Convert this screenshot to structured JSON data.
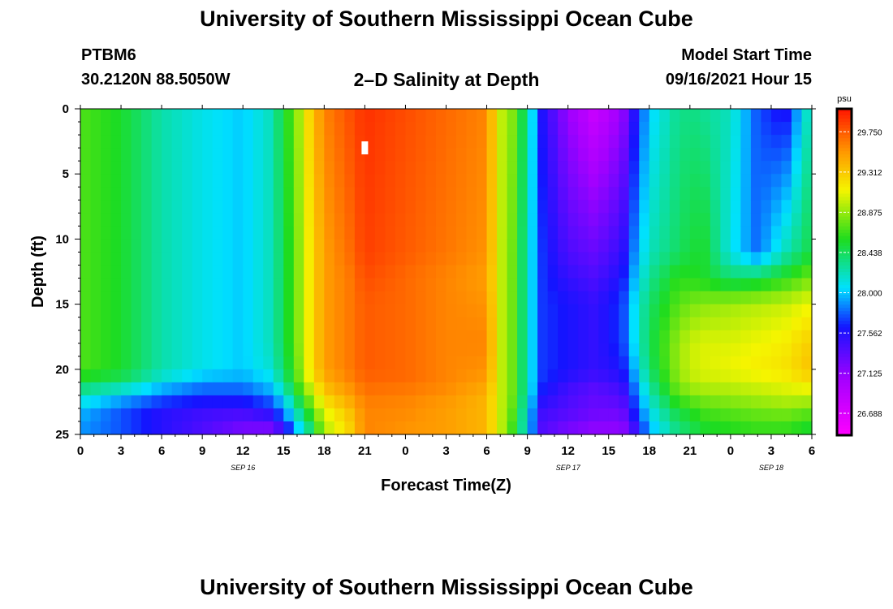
{
  "page": {
    "title_top": "University of Southern Mississippi Ocean Cube",
    "title_bottom": "University of Southern Mississippi Ocean Cube",
    "station_id": "PTBM6",
    "station_coords": "30.2120N  88.5050W",
    "plot_title": "2–D Salinity at Depth",
    "model_start_label": "Model Start Time",
    "model_start_value": "09/16/2021 Hour 15"
  },
  "chart_data": {
    "type": "heatmap",
    "title": "2–D Salinity at Depth",
    "xlabel": "Forecast Time(Z)",
    "ylabel": "Depth (ft)",
    "x_hours": [
      0,
      3,
      6,
      9,
      12,
      15,
      18,
      21,
      24,
      27,
      30,
      33,
      36,
      39,
      42,
      45,
      48,
      51,
      54
    ],
    "x_tick_labels": [
      "0",
      "3",
      "6",
      "9",
      "12",
      "15",
      "18",
      "21",
      "0",
      "3",
      "6",
      "9",
      "12",
      "15",
      "18",
      "21",
      "0",
      "3",
      "6"
    ],
    "xlim": [
      0,
      54
    ],
    "date_labels": [
      {
        "hour": 12,
        "text": "SEP 16"
      },
      {
        "hour": 36,
        "text": "SEP 17"
      },
      {
        "hour": 51,
        "text": "SEP 18"
      }
    ],
    "y_ticks": [
      0,
      5,
      10,
      15,
      20,
      25
    ],
    "ylim": [
      0,
      25
    ],
    "colorbar": {
      "unit": "psu",
      "min": 26.45,
      "max": 30.0,
      "tick_values": [
        29.75,
        29.312,
        28.875,
        28.438,
        28.0,
        27.562,
        27.125,
        26.688
      ],
      "tick_labels": [
        "29.750",
        "29.312",
        "28.875",
        "28.438",
        "28.000",
        "27.562",
        "27.125",
        "26.688"
      ]
    },
    "depths_ft": [
      0,
      11,
      13,
      15,
      18,
      20,
      21,
      22,
      23,
      24,
      25
    ],
    "salinity_hours": [
      0,
      3,
      6,
      9,
      12,
      14,
      15,
      16,
      17,
      18,
      20,
      21,
      24,
      27,
      30,
      31,
      32,
      33,
      34,
      36,
      38,
      40,
      41,
      42,
      44,
      45,
      46,
      48,
      50,
      52,
      54
    ],
    "salinity_psu": [
      [
        28.7,
        28.55,
        28.25,
        28.1,
        28.0,
        28.2,
        28.5,
        28.85,
        29.3,
        29.6,
        29.8,
        29.9,
        29.8,
        29.7,
        29.6,
        29.0,
        28.8,
        28.3,
        27.6,
        27.1,
        26.8,
        27.1,
        27.6,
        28.0,
        28.3,
        28.35,
        28.3,
        28.2,
        27.75,
        27.55,
        28.3
      ],
      [
        28.7,
        28.55,
        28.25,
        28.1,
        28.0,
        28.2,
        28.45,
        28.8,
        29.2,
        29.5,
        29.7,
        29.85,
        29.75,
        29.65,
        29.55,
        29.0,
        28.75,
        28.2,
        27.7,
        27.4,
        27.3,
        27.5,
        27.9,
        28.2,
        28.4,
        28.5,
        28.55,
        28.1,
        27.8,
        28.2,
        28.5
      ],
      [
        28.7,
        28.55,
        28.25,
        28.1,
        28.0,
        28.2,
        28.45,
        28.8,
        29.2,
        29.5,
        29.65,
        29.8,
        29.7,
        29.6,
        29.5,
        29.0,
        28.75,
        28.2,
        27.7,
        27.5,
        27.4,
        27.6,
        28.0,
        28.3,
        28.6,
        28.6,
        28.55,
        28.4,
        28.45,
        28.6,
        28.8
      ],
      [
        28.7,
        28.55,
        28.25,
        28.1,
        28.0,
        28.2,
        28.45,
        28.8,
        29.2,
        29.5,
        29.65,
        29.75,
        29.7,
        29.6,
        29.55,
        29.0,
        28.75,
        28.2,
        27.7,
        27.6,
        27.5,
        27.7,
        28.1,
        28.4,
        28.7,
        28.8,
        28.85,
        28.9,
        28.95,
        29.0,
        29.1
      ],
      [
        28.7,
        28.55,
        28.25,
        28.1,
        28.0,
        28.2,
        28.45,
        28.8,
        29.2,
        29.5,
        29.65,
        29.75,
        29.7,
        29.6,
        29.6,
        29.0,
        28.75,
        28.2,
        27.7,
        27.6,
        27.5,
        27.7,
        28.1,
        28.45,
        28.85,
        29.0,
        29.05,
        29.05,
        29.1,
        29.15,
        29.3
      ],
      [
        28.7,
        28.55,
        28.25,
        28.1,
        28.0,
        28.15,
        28.4,
        28.75,
        29.2,
        29.5,
        29.65,
        29.75,
        29.7,
        29.6,
        29.55,
        29.0,
        28.75,
        28.2,
        27.7,
        27.6,
        27.5,
        27.6,
        28.0,
        28.4,
        28.85,
        29.0,
        29.05,
        29.1,
        29.15,
        29.2,
        29.35
      ],
      [
        28.5,
        28.4,
        28.1,
        27.9,
        27.9,
        28.0,
        28.3,
        28.7,
        29.1,
        29.4,
        29.6,
        29.7,
        29.7,
        29.6,
        29.5,
        29.0,
        28.75,
        28.2,
        27.7,
        27.5,
        27.4,
        27.5,
        27.9,
        28.3,
        28.8,
        28.95,
        29.0,
        29.0,
        29.05,
        29.1,
        29.2
      ],
      [
        28.2,
        28.0,
        27.8,
        27.7,
        27.7,
        27.9,
        28.1,
        28.5,
        28.9,
        29.3,
        29.5,
        29.65,
        29.6,
        29.55,
        29.4,
        29.0,
        28.75,
        28.2,
        27.6,
        27.4,
        27.3,
        27.4,
        27.8,
        28.2,
        28.7,
        28.8,
        28.85,
        28.9,
        28.95,
        29.0,
        29.0
      ],
      [
        28.0,
        27.8,
        27.6,
        27.5,
        27.5,
        27.6,
        27.9,
        28.3,
        28.7,
        29.1,
        29.4,
        29.6,
        29.6,
        29.5,
        29.4,
        29.0,
        28.7,
        28.1,
        27.5,
        27.4,
        27.3,
        27.3,
        27.7,
        28.1,
        28.5,
        28.6,
        28.7,
        28.75,
        28.8,
        28.85,
        28.8
      ],
      [
        27.9,
        27.7,
        27.5,
        27.4,
        27.3,
        27.4,
        27.7,
        28.1,
        28.5,
        29.0,
        29.3,
        29.6,
        29.55,
        29.5,
        29.4,
        29.0,
        28.65,
        28.1,
        27.4,
        27.3,
        27.2,
        27.2,
        27.6,
        28.0,
        28.4,
        28.5,
        28.6,
        28.65,
        28.7,
        28.7,
        28.6
      ],
      [
        27.9,
        27.8,
        27.6,
        27.4,
        27.2,
        27.1,
        27.3,
        27.9,
        28.3,
        28.9,
        29.3,
        29.6,
        29.55,
        29.5,
        29.4,
        29.0,
        28.6,
        28.1,
        27.4,
        27.2,
        27.1,
        27.1,
        27.4,
        27.9,
        28.3,
        28.4,
        28.5,
        28.55,
        28.6,
        28.6,
        28.5
      ]
    ],
    "marker": {
      "hour": 21,
      "depth_ft": 3
    }
  }
}
